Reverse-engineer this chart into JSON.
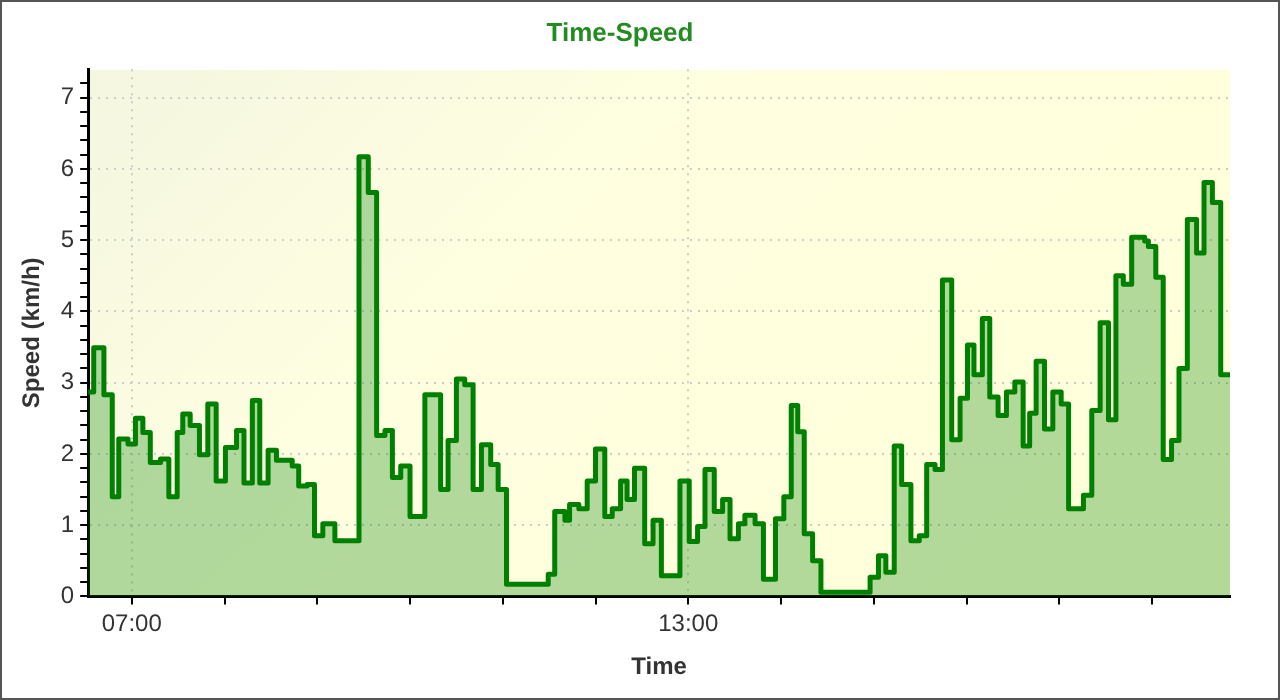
{
  "chart_data": {
    "type": "area",
    "title": "Time-Speed",
    "xlabel": "Time",
    "ylabel": "Speed (km/h)",
    "x": [
      6.53,
      6.59,
      6.59,
      6.7,
      6.7,
      6.79,
      6.79,
      6.86,
      6.86,
      6.96,
      6.96,
      7.04,
      7.04,
      7.12,
      7.12,
      7.2,
      7.2,
      7.31,
      7.31,
      7.4,
      7.4,
      7.49,
      7.49,
      7.55,
      7.55,
      7.63,
      7.63,
      7.73,
      7.73,
      7.82,
      7.82,
      7.91,
      7.91,
      8.01,
      8.01,
      8.13,
      8.13,
      8.21,
      8.21,
      8.3,
      8.3,
      8.38,
      8.38,
      8.47,
      8.47,
      8.56,
      8.56,
      8.73,
      8.73,
      8.8,
      8.8,
      8.89,
      8.89,
      8.97,
      8.97,
      9.06,
      9.06,
      9.19,
      9.19,
      9.45,
      9.45,
      9.55,
      9.55,
      9.64,
      9.64,
      9.73,
      9.73,
      9.81,
      9.81,
      9.9,
      9.9,
      10.0,
      10.0,
      10.16,
      10.16,
      10.33,
      10.33,
      10.41,
      10.41,
      10.5,
      10.5,
      10.59,
      10.59,
      10.68,
      10.68,
      10.77,
      10.77,
      10.87,
      10.87,
      10.95,
      10.95,
      11.04,
      11.04,
      11.49,
      11.49,
      11.56,
      11.56,
      11.67,
      11.67,
      11.72,
      11.72,
      11.82,
      11.82,
      11.91,
      11.91,
      12.0,
      12.0,
      12.1,
      12.1,
      12.18,
      12.18,
      12.27,
      12.27,
      12.34,
      12.34,
      12.42,
      12.42,
      12.53,
      12.53,
      12.62,
      12.62,
      12.71,
      12.71,
      12.91,
      12.91,
      13.01,
      13.01,
      13.1,
      13.1,
      13.18,
      13.18,
      13.28,
      13.28,
      13.37,
      13.37,
      13.45,
      13.45,
      13.54,
      13.54,
      13.61,
      13.61,
      13.72,
      13.72,
      13.81,
      13.81,
      13.94,
      13.94,
      14.03,
      14.03,
      14.11,
      14.11,
      14.18,
      14.18,
      14.25,
      14.25,
      14.34,
      14.34,
      14.43,
      14.43,
      14.96,
      14.96,
      15.05,
      15.05,
      15.13,
      15.13,
      15.22,
      15.22,
      15.3,
      15.3,
      15.4,
      15.4,
      15.49,
      15.49,
      15.57,
      15.57,
      15.66,
      15.66,
      15.74,
      15.74,
      15.84,
      15.84,
      15.93,
      15.93,
      16.01,
      16.01,
      16.08,
      16.08,
      16.17,
      16.17,
      16.25,
      16.25,
      16.34,
      16.34,
      16.43,
      16.43,
      16.52,
      16.52,
      16.61,
      16.61,
      16.68,
      16.68,
      16.75,
      16.75,
      16.84,
      16.84,
      16.93,
      16.93,
      17.02,
      17.02,
      17.1,
      17.1,
      17.26,
      17.26,
      17.35,
      17.35,
      17.44,
      17.44,
      17.53,
      17.53,
      17.61,
      17.61,
      17.69,
      17.69,
      17.78,
      17.78,
      17.92,
      17.92,
      17.96,
      17.96,
      18.04,
      18.04,
      18.12,
      18.12,
      18.21,
      18.21,
      18.29,
      18.29,
      18.38,
      18.38,
      18.48,
      18.48,
      18.56,
      18.56,
      18.65,
      18.65,
      18.74,
      18.74,
      18.84
    ],
    "series": [
      {
        "color": "#008000",
        "values": [
          2.87,
          2.87,
          3.49,
          3.49,
          2.83,
          2.83,
          1.4,
          1.4,
          2.21,
          2.21,
          2.14,
          2.14,
          2.5,
          2.5,
          2.3,
          2.3,
          1.88,
          1.88,
          1.93,
          1.93,
          1.4,
          1.4,
          2.3,
          2.3,
          2.56,
          2.56,
          2.4,
          2.4,
          1.99,
          1.99,
          2.7,
          2.7,
          1.62,
          1.62,
          2.09,
          2.09,
          2.33,
          2.33,
          1.59,
          1.59,
          2.75,
          2.75,
          1.59,
          1.59,
          2.05,
          2.05,
          1.91,
          1.91,
          1.83,
          1.83,
          1.55,
          1.55,
          1.57,
          1.57,
          0.85,
          0.85,
          1.02,
          1.02,
          0.78,
          0.78,
          6.17,
          6.17,
          5.67,
          5.67,
          2.26,
          2.26,
          2.33,
          2.33,
          1.67,
          1.67,
          1.83,
          1.83,
          1.12,
          1.12,
          2.83,
          2.83,
          1.5,
          1.5,
          2.19,
          2.19,
          3.05,
          3.05,
          2.97,
          2.97,
          1.5,
          1.5,
          2.13,
          2.13,
          1.85,
          1.85,
          1.5,
          1.5,
          0.17,
          0.17,
          0.31,
          0.31,
          1.19,
          1.19,
          1.07,
          1.07,
          1.29,
          1.29,
          1.23,
          1.23,
          1.62,
          1.62,
          2.07,
          2.07,
          1.12,
          1.12,
          1.23,
          1.23,
          1.62,
          1.62,
          1.36,
          1.36,
          1.8,
          1.8,
          0.74,
          0.74,
          1.07,
          1.07,
          0.29,
          0.29,
          1.62,
          1.62,
          0.77,
          0.77,
          0.98,
          0.98,
          1.78,
          1.78,
          1.19,
          1.19,
          1.36,
          1.36,
          0.81,
          0.81,
          1.02,
          1.02,
          1.14,
          1.14,
          1.02,
          1.02,
          0.24,
          0.24,
          1.09,
          1.09,
          1.4,
          1.4,
          2.68,
          2.68,
          2.31,
          2.31,
          0.88,
          0.88,
          0.5,
          0.5,
          0.06,
          0.06,
          0.27,
          0.27,
          0.57,
          0.57,
          0.34,
          0.34,
          2.11,
          2.11,
          1.57,
          1.57,
          0.78,
          0.78,
          0.85,
          0.85,
          1.85,
          1.85,
          1.78,
          1.78,
          4.44,
          4.44,
          2.2,
          2.2,
          2.78,
          2.78,
          3.53,
          3.53,
          3.11,
          3.11,
          3.9,
          3.9,
          2.8,
          2.8,
          2.54,
          2.54,
          2.87,
          2.87,
          3.01,
          3.01,
          2.11,
          2.11,
          2.57,
          2.57,
          3.3,
          3.3,
          2.35,
          2.35,
          2.87,
          2.87,
          2.7,
          2.7,
          1.23,
          1.23,
          1.42,
          1.42,
          2.61,
          2.61,
          3.84,
          3.84,
          2.48,
          2.48,
          4.5,
          4.5,
          4.38,
          4.38,
          5.04,
          5.04,
          4.99,
          4.99,
          4.91,
          4.91,
          4.48,
          4.48,
          1.92,
          1.92,
          2.19,
          2.19,
          3.2,
          3.2,
          5.29,
          5.29,
          4.82,
          4.82,
          5.81,
          5.81,
          5.53,
          5.53,
          3.11,
          3.11
        ]
      }
    ],
    "xlim": [
      6.53,
      18.84
    ],
    "xticks": [
      {
        "value": 7,
        "label": "07:00"
      },
      {
        "value": 8,
        "label": null
      },
      {
        "value": 9,
        "label": null
      },
      {
        "value": 10,
        "label": null
      },
      {
        "value": 11,
        "label": null
      },
      {
        "value": 12,
        "label": null
      },
      {
        "value": 13,
        "label": "13:00"
      },
      {
        "value": 14,
        "label": null
      },
      {
        "value": 15,
        "label": null
      },
      {
        "value": 16,
        "label": null
      },
      {
        "value": 17,
        "label": null
      },
      {
        "value": 18,
        "label": null
      }
    ],
    "ylim": [
      0,
      7.4
    ],
    "yticks": [
      0,
      {
        "value": 0.2,
        "label": null
      },
      {
        "value": 0.4,
        "label": null
      },
      {
        "value": 0.6,
        "label": null
      },
      {
        "value": 0.8,
        "label": null
      },
      1,
      {
        "value": 1.2,
        "label": null
      },
      {
        "value": 1.4,
        "label": null
      },
      {
        "value": 1.6,
        "label": null
      },
      {
        "value": 1.8,
        "label": null
      },
      2,
      {
        "value": 2.2,
        "label": null
      },
      {
        "value": 2.4,
        "label": null
      },
      {
        "value": 2.6,
        "label": null
      },
      {
        "value": 2.8,
        "label": null
      },
      3,
      {
        "value": 3.2,
        "label": null
      },
      {
        "value": 3.4,
        "label": null
      },
      {
        "value": 3.6,
        "label": null
      },
      {
        "value": 3.8,
        "label": null
      },
      4,
      {
        "value": 4.2,
        "label": null
      },
      {
        "value": 4.4,
        "label": null
      },
      {
        "value": 4.6,
        "label": null
      },
      {
        "value": 4.8,
        "label": null
      },
      5,
      {
        "value": 5.2,
        "label": null
      },
      {
        "value": 5.4,
        "label": null
      },
      {
        "value": 5.6,
        "label": null
      },
      {
        "value": 5.8,
        "label": null
      },
      6,
      {
        "value": 6.2,
        "label": null
      },
      {
        "value": 6.4,
        "label": null
      },
      {
        "value": 6.6,
        "label": null
      },
      {
        "value": 6.8,
        "label": null
      },
      7,
      {
        "value": 7.2,
        "label": null
      }
    ],
    "grid": true,
    "legend": false
  }
}
